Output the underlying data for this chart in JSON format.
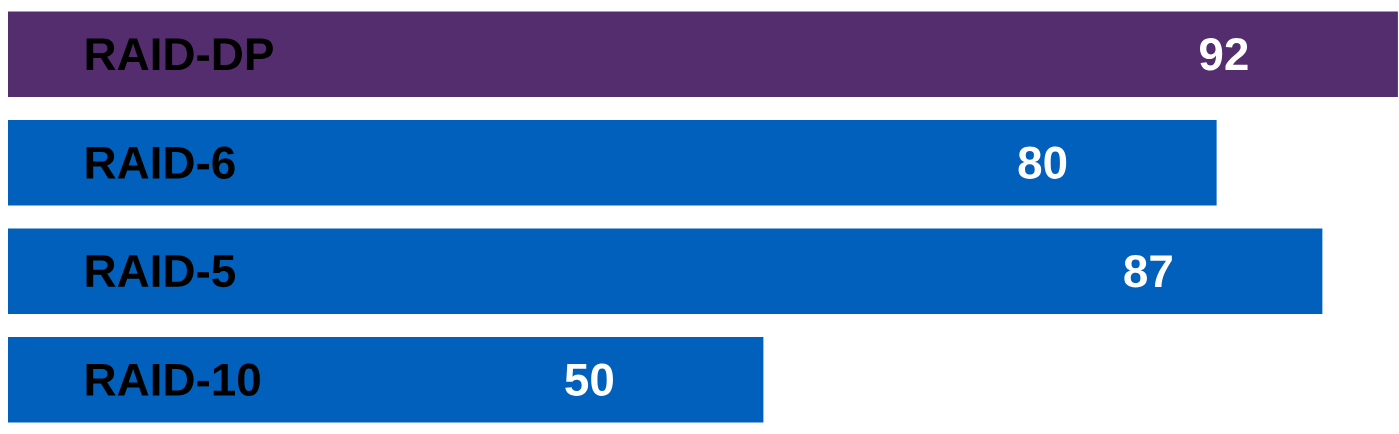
{
  "chart_data": {
    "type": "bar",
    "orientation": "horizontal",
    "categories": [
      "RAID-DP",
      "RAID-6",
      "RAID-5",
      "RAID-10"
    ],
    "values": [
      92,
      80,
      87,
      50
    ],
    "colors": [
      "#542d6e",
      "#0060bb",
      "#0060bb",
      "#0060bb"
    ],
    "data_labels": true
  }
}
